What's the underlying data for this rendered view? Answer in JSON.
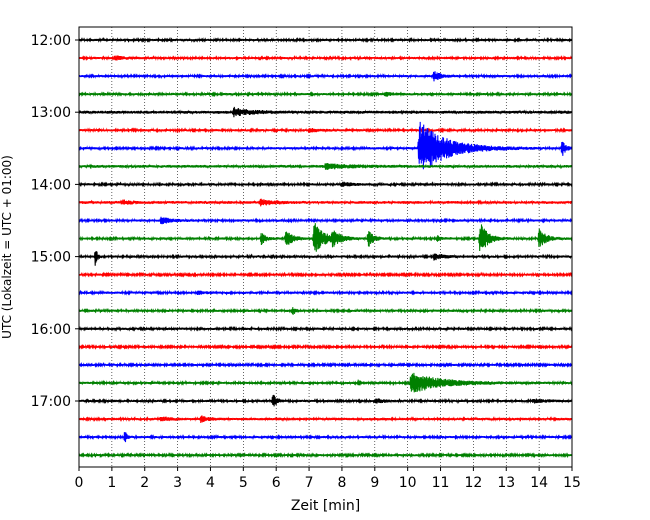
{
  "chart_data": {
    "type": "line",
    "chart_kind": "helicorder seismogram",
    "xlabel": "Zeit  [min]",
    "ylabel": "UTC (Lokalzeit = UTC + 01:00)",
    "xlim": [
      0,
      15
    ],
    "x_ticks": [
      "0",
      "1",
      "2",
      "3",
      "4",
      "5",
      "6",
      "7",
      "8",
      "9",
      "10",
      "11",
      "12",
      "13",
      "14",
      "15"
    ],
    "y_tick_labels": [
      {
        "label": "12:00",
        "trace": 0
      },
      {
        "label": "13:00",
        "trace": 4
      },
      {
        "label": "14:00",
        "trace": 8
      },
      {
        "label": "15:00",
        "trace": 12
      },
      {
        "label": "16:00",
        "trace": 16
      },
      {
        "label": "17:00",
        "trace": 20
      }
    ],
    "vertical_grid": "dotted, every minute",
    "colors": [
      "#000000",
      "#ff0000",
      "#0000ff",
      "#008000"
    ],
    "traces": [
      {
        "start": "12:00",
        "color": "#000000",
        "noise": 1.0,
        "events": []
      },
      {
        "start": "12:15",
        "color": "#ff0000",
        "noise": 1.0,
        "events": [
          {
            "t": 1.1,
            "amp": 2,
            "dur": 0.8
          }
        ]
      },
      {
        "start": "12:30",
        "color": "#0000ff",
        "noise": 1.0,
        "events": [
          {
            "t": 10.8,
            "amp": 5,
            "dur": 0.5
          }
        ]
      },
      {
        "start": "12:45",
        "color": "#008000",
        "noise": 1.0,
        "events": [
          {
            "t": 9.3,
            "amp": 2,
            "dur": 0.6
          }
        ]
      },
      {
        "start": "13:00",
        "color": "#000000",
        "noise": 1.3,
        "events": [
          {
            "t": 4.7,
            "amp": 4,
            "dur": 1.2
          }
        ]
      },
      {
        "start": "13:15",
        "color": "#ff0000",
        "noise": 1.0,
        "events": [
          {
            "t": 7.0,
            "amp": 2,
            "dur": 0.8
          }
        ]
      },
      {
        "start": "13:30",
        "color": "#0000ff",
        "noise": 1.0,
        "events": [
          {
            "t": 10.35,
            "amp": 28,
            "dur": 2.2
          },
          {
            "t": 14.7,
            "amp": 8,
            "dur": 0.3
          }
        ]
      },
      {
        "start": "13:45",
        "color": "#008000",
        "noise": 1.2,
        "events": [
          {
            "t": 7.5,
            "amp": 2.5,
            "dur": 2.0
          }
        ]
      },
      {
        "start": "14:00",
        "color": "#000000",
        "noise": 1.0,
        "events": [
          {
            "t": 8.0,
            "amp": 2,
            "dur": 0.8
          }
        ]
      },
      {
        "start": "14:15",
        "color": "#ff0000",
        "noise": 1.2,
        "events": [
          {
            "t": 5.5,
            "amp": 3,
            "dur": 1.0
          },
          {
            "t": 1.3,
            "amp": 2,
            "dur": 0.8
          }
        ]
      },
      {
        "start": "14:30",
        "color": "#0000ff",
        "noise": 1.0,
        "events": [
          {
            "t": 2.5,
            "amp": 3.5,
            "dur": 0.7
          }
        ]
      },
      {
        "start": "14:45",
        "color": "#008000",
        "noise": 1.0,
        "events": [
          {
            "t": 5.55,
            "amp": 6,
            "dur": 0.35
          },
          {
            "t": 6.3,
            "amp": 10,
            "dur": 0.5
          },
          {
            "t": 7.15,
            "amp": 17,
            "dur": 0.8
          },
          {
            "t": 7.7,
            "amp": 7,
            "dur": 0.7
          },
          {
            "t": 8.8,
            "amp": 9,
            "dur": 0.4
          },
          {
            "t": 10.9,
            "amp": 3,
            "dur": 0.3
          },
          {
            "t": 12.2,
            "amp": 17,
            "dur": 0.6
          },
          {
            "t": 14.0,
            "amp": 9,
            "dur": 0.6
          }
        ]
      },
      {
        "start": "15:00",
        "color": "#000000",
        "noise": 1.0,
        "events": [
          {
            "t": 0.5,
            "amp": 10,
            "dur": 0.15
          },
          {
            "t": 10.8,
            "amp": 3,
            "dur": 0.8
          }
        ]
      },
      {
        "start": "15:15",
        "color": "#ff0000",
        "noise": 0.9,
        "events": []
      },
      {
        "start": "15:30",
        "color": "#0000ff",
        "noise": 1.0,
        "events": [
          {
            "t": 3.6,
            "amp": 2,
            "dur": 0.5
          }
        ]
      },
      {
        "start": "15:45",
        "color": "#008000",
        "noise": 1.0,
        "events": [
          {
            "t": 6.5,
            "amp": 4,
            "dur": 0.25
          }
        ]
      },
      {
        "start": "16:00",
        "color": "#000000",
        "noise": 1.0,
        "events": []
      },
      {
        "start": "16:15",
        "color": "#ff0000",
        "noise": 0.9,
        "events": []
      },
      {
        "start": "16:30",
        "color": "#0000ff",
        "noise": 0.9,
        "events": []
      },
      {
        "start": "16:45",
        "color": "#008000",
        "noise": 1.0,
        "events": [
          {
            "t": 8.5,
            "amp": 3,
            "dur": 0.2
          },
          {
            "t": 10.1,
            "amp": 10,
            "dur": 2.5
          }
        ]
      },
      {
        "start": "17:00",
        "color": "#000000",
        "noise": 1.0,
        "events": [
          {
            "t": 5.9,
            "amp": 7,
            "dur": 0.3
          },
          {
            "t": 9.0,
            "amp": 2,
            "dur": 0.8
          },
          {
            "t": 13.8,
            "amp": 2,
            "dur": 1.0
          }
        ]
      },
      {
        "start": "17:15",
        "color": "#ff0000",
        "noise": 1.1,
        "events": [
          {
            "t": 3.7,
            "amp": 3,
            "dur": 0.6
          },
          {
            "t": 2.5,
            "amp": 2,
            "dur": 0.8
          }
        ]
      },
      {
        "start": "17:30",
        "color": "#0000ff",
        "noise": 1.0,
        "events": [
          {
            "t": 1.4,
            "amp": 8,
            "dur": 0.15
          }
        ]
      },
      {
        "start": "17:45",
        "color": "#008000",
        "noise": 0.9,
        "events": []
      }
    ]
  }
}
